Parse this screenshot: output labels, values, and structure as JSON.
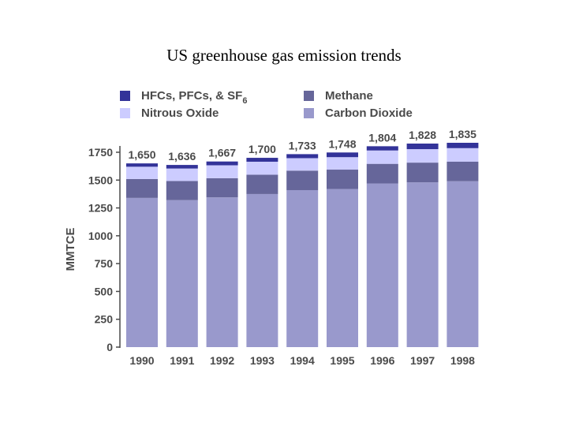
{
  "page_title": "US greenhouse gas emission trends",
  "legend": {
    "hfcs_main": "HFCs, PFCs, & SF",
    "hfcs_sub": "6",
    "methane": "Methane",
    "nitrous": "Nitrous Oxide",
    "co2": "Carbon Dioxide"
  },
  "colors": {
    "co2": "#9999cc",
    "methane": "#66669a",
    "nitrous": "#ccccff",
    "hfcs": "#333399",
    "text": "#4a4a4a"
  },
  "chart_data": {
    "type": "bar",
    "stacked": true,
    "title": "US greenhouse gas emission trends",
    "ylabel": "MMTCE",
    "xlabel": "",
    "ylim": [
      0,
      1750
    ],
    "yticks": [
      "0",
      "250",
      "500",
      "750",
      "1000",
      "1250",
      "1500",
      "1750"
    ],
    "categories": [
      "1990",
      "1991",
      "1992",
      "1993",
      "1994",
      "1995",
      "1996",
      "1997",
      "1998"
    ],
    "totals_labels": [
      "1,650",
      "1,636",
      "1,667",
      "1,700",
      "1,733",
      "1,748",
      "1,804",
      "1,828",
      "1,835"
    ],
    "series": [
      {
        "name": "Carbon Dioxide",
        "key": "co2",
        "values": [
          1340,
          1320,
          1345,
          1375,
          1410,
          1420,
          1470,
          1480,
          1490
        ]
      },
      {
        "name": "Methane",
        "key": "methane",
        "values": [
          170,
          172,
          172,
          173,
          175,
          174,
          176,
          177,
          176
        ]
      },
      {
        "name": "Nitrous Oxide",
        "key": "nitrous",
        "values": [
          110,
          112,
          116,
          117,
          112,
          112,
          120,
          121,
          121
        ]
      },
      {
        "name": "HFCs, PFCs, & SF6",
        "key": "hfcs",
        "values": [
          30,
          32,
          34,
          35,
          36,
          42,
          38,
          50,
          48
        ]
      }
    ]
  }
}
